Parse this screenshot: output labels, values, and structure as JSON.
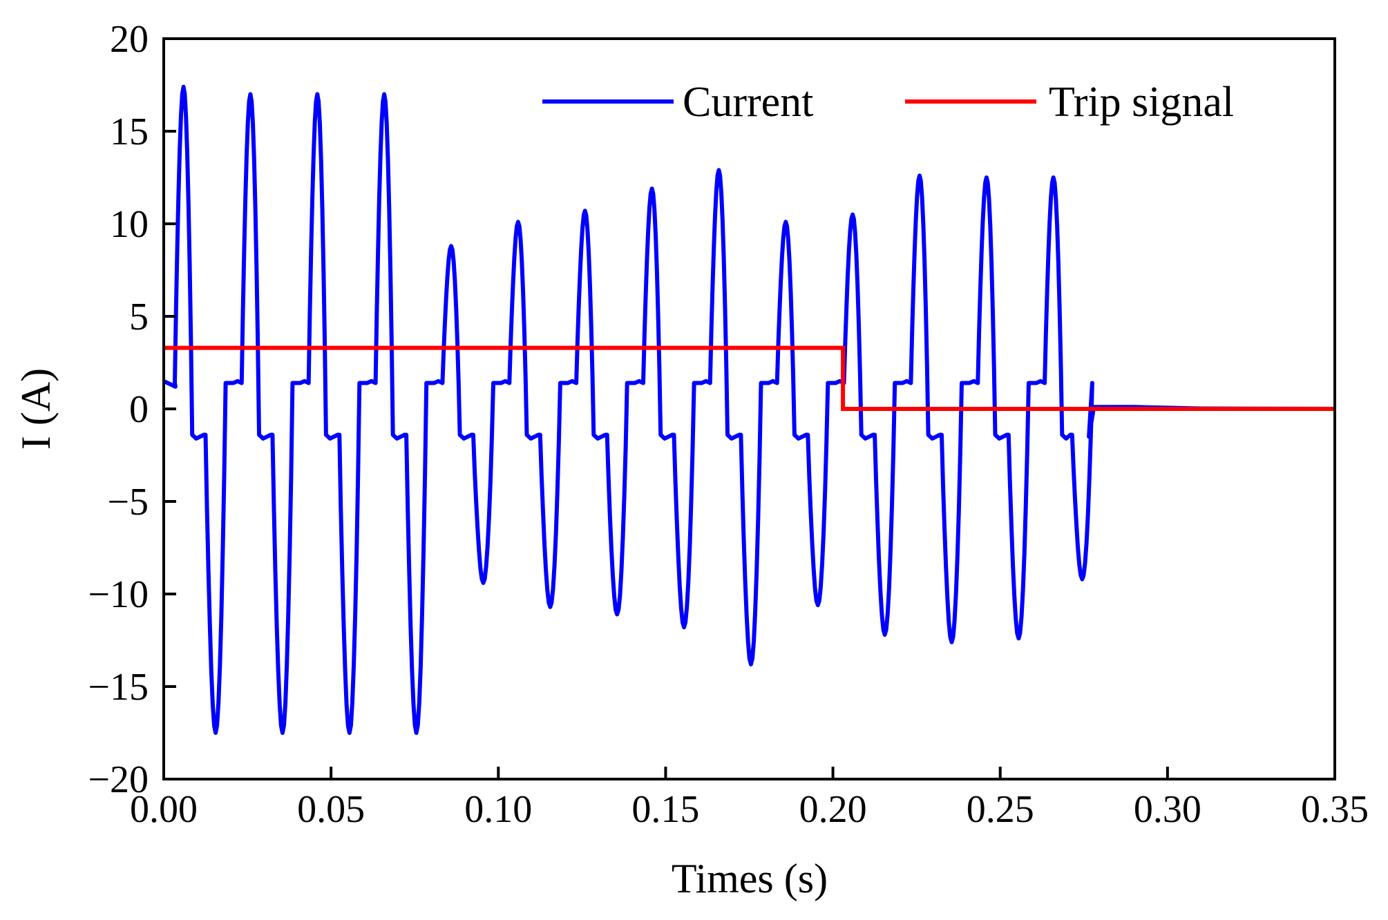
{
  "chart_data": {
    "type": "line",
    "title": "",
    "xlabel": "Times (s)",
    "ylabel": "I (A)",
    "xlim": [
      0.0,
      0.35
    ],
    "ylim": [
      -20,
      20
    ],
    "x_ticks": [
      0.0,
      0.05,
      0.1,
      0.15,
      0.2,
      0.25,
      0.3,
      0.35
    ],
    "x_tick_labels": [
      "0.00",
      "0.05",
      "0.10",
      "0.15",
      "0.20",
      "0.25",
      "0.30",
      "0.35"
    ],
    "y_ticks": [
      -20,
      -15,
      -10,
      -5,
      0,
      5,
      10,
      15,
      20
    ],
    "y_tick_labels": [
      "−20",
      "−15",
      "−10",
      "−5",
      "0",
      "5",
      "10",
      "15",
      "20"
    ],
    "legend_position": "top-right",
    "grid": false,
    "series": [
      {
        "name": "Current",
        "color": "#0000ff",
        "waveform": "periodic",
        "period_s": 0.02,
        "t_end_active_s": 0.278,
        "t_start_s": 0.0,
        "initial_value": 1.5,
        "shelf_level_A": 1.4,
        "cycles": [
          {
            "t_peak": 0.0055,
            "peak": 17.4,
            "t_trough": 0.0155,
            "trough": -17.5
          },
          {
            "t_peak": 0.0255,
            "peak": 17.0,
            "t_trough": 0.0355,
            "trough": -17.5
          },
          {
            "t_peak": 0.0455,
            "peak": 17.0,
            "t_trough": 0.0555,
            "trough": -17.5
          },
          {
            "t_peak": 0.0655,
            "peak": 17.0,
            "t_trough": 0.0755,
            "trough": -17.5
          },
          {
            "t_peak": 0.0855,
            "peak": 8.8,
            "t_trough": 0.0955,
            "trough": -9.4
          },
          {
            "t_peak": 0.1055,
            "peak": 10.1,
            "t_trough": 0.1155,
            "trough": -10.7
          },
          {
            "t_peak": 0.1255,
            "peak": 10.7,
            "t_trough": 0.1355,
            "trough": -11.1
          },
          {
            "t_peak": 0.1455,
            "peak": 11.9,
            "t_trough": 0.1555,
            "trough": -11.8
          },
          {
            "t_peak": 0.1655,
            "peak": 12.9,
            "t_trough": 0.1755,
            "trough": -13.8
          },
          {
            "t_peak": 0.1855,
            "peak": 10.1,
            "t_trough": 0.1955,
            "trough": -10.6
          },
          {
            "t_peak": 0.2055,
            "peak": 10.5,
            "t_trough": 0.2155,
            "trough": -12.2
          },
          {
            "t_peak": 0.2255,
            "peak": 12.6,
            "t_trough": 0.2355,
            "trough": -12.6
          },
          {
            "t_peak": 0.2455,
            "peak": 12.5,
            "t_trough": 0.2555,
            "trough": -12.4
          },
          {
            "t_peak": 0.2655,
            "peak": 12.5,
            "t_trough": 0.2745,
            "trough": -9.2
          }
        ],
        "tail_value": 0.1
      },
      {
        "name": "Trip signal",
        "color": "#ff0000",
        "waveform": "step",
        "x": [
          0.0,
          0.203,
          0.203,
          0.35
        ],
        "values": [
          3.3,
          3.3,
          0.0,
          0.0
        ]
      }
    ]
  }
}
